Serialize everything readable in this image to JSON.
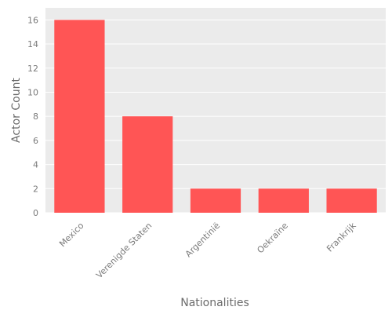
{
  "chart_data": {
    "type": "bar",
    "categories": [
      "Mexico",
      "Verenigde Staten",
      "Argentinië",
      "Oekraïne",
      "Frankrijk"
    ],
    "values": [
      16,
      8,
      2,
      2,
      2
    ],
    "title": "",
    "xlabel": "Nationalities",
    "ylabel": "Actor Count",
    "ylim": [
      0,
      17
    ],
    "yticks": [
      0,
      2,
      4,
      6,
      8,
      10,
      12,
      14,
      16
    ],
    "grid": true,
    "legend": "none",
    "colors": {
      "bar": "#ff5555",
      "panel": "#ebebeb",
      "grid": "#ffffff",
      "text": "#7a7a7a"
    }
  }
}
